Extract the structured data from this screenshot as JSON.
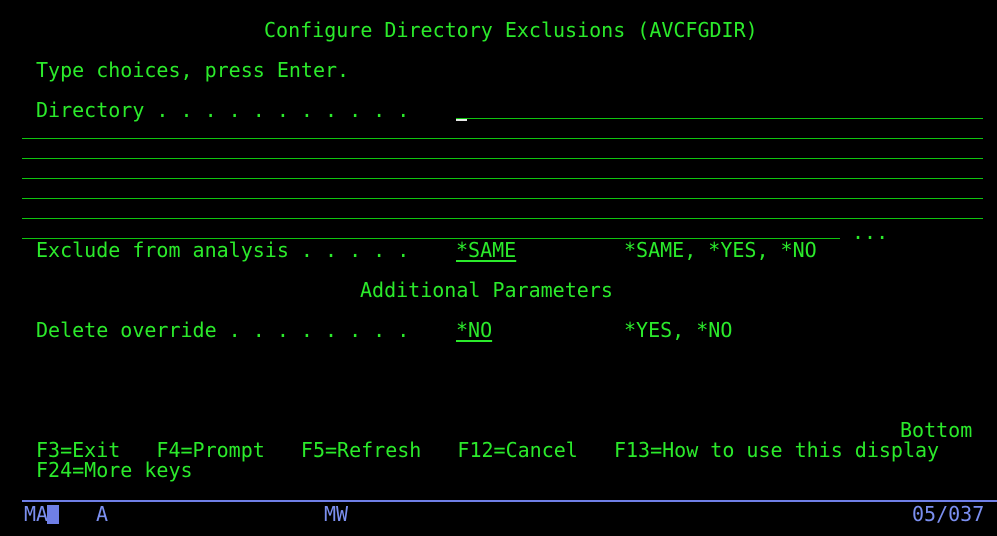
{
  "title": "Configure Directory Exclusions (AVCFGDIR)",
  "instructions": "Type choices, press Enter.",
  "fields": {
    "directory": {
      "label": "Directory . . . . . . . . . . .",
      "value": ""
    },
    "exclude": {
      "label": "Exclude from analysis . . . . .",
      "value": "*SAME",
      "choices": "*SAME, *YES, *NO"
    },
    "more_indicator": "...",
    "section_heading": "Additional Parameters",
    "delete_override": {
      "label": "Delete override . . . . . . . .",
      "value": "*NO",
      "choices": "*YES, *NO"
    }
  },
  "position_indicator": "Bottom",
  "function_keys": {
    "line1": "F3=Exit   F4=Prompt   F5=Refresh   F12=Cancel   F13=How to use this display",
    "line2": "F24=More keys"
  },
  "status_bar": {
    "ma": "MA",
    "a": "A",
    "mw": "MW",
    "cursor_pos": "05/037"
  },
  "colors": {
    "text": "#2bea2b",
    "underline": "#0fc40f",
    "status": "#7b8ff0",
    "background": "#000000"
  }
}
